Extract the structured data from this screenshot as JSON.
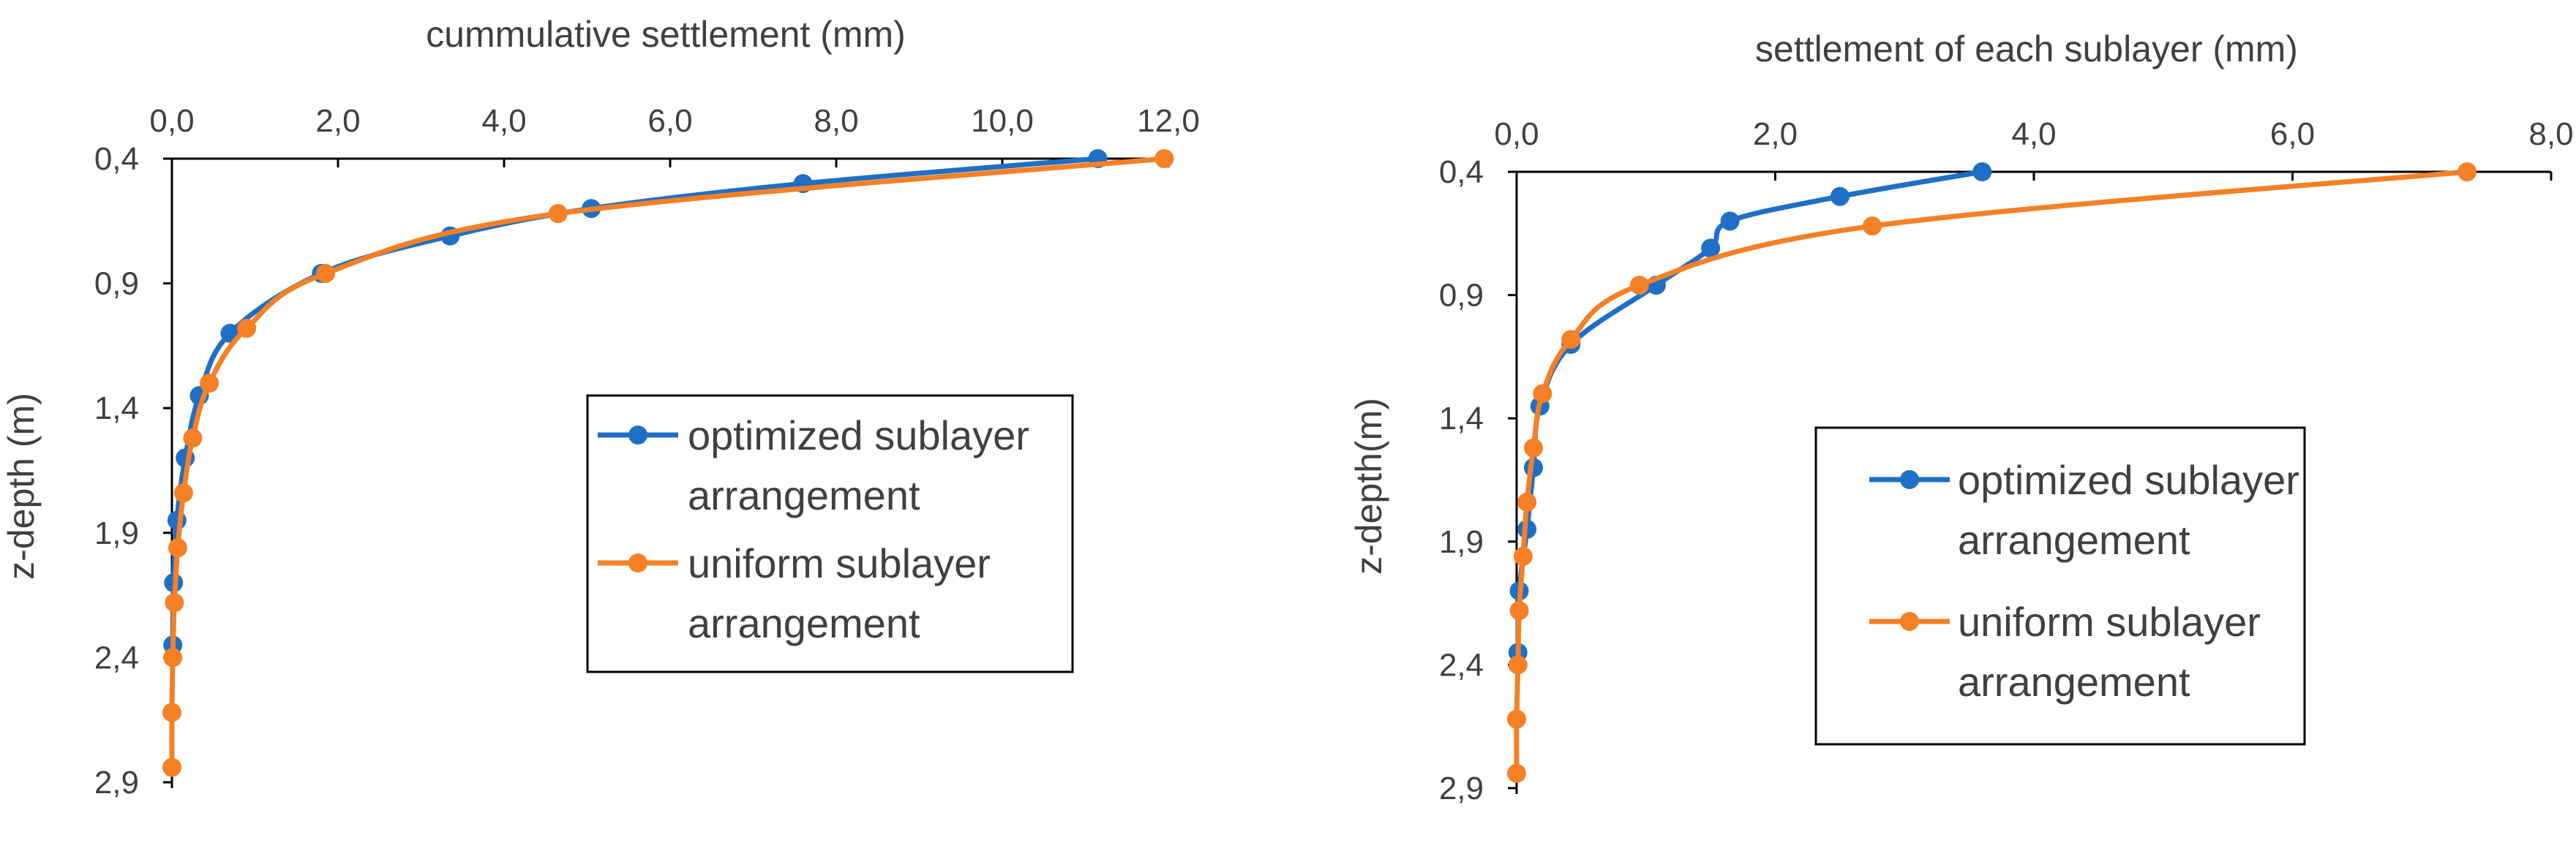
{
  "chart_data": [
    {
      "type": "line",
      "title": "",
      "xlabel": "cummulative settlement (mm)",
      "ylabel": "z-depth (m)",
      "x_ticks": [
        "0,0",
        "2,0",
        "4,0",
        "6,0",
        "8,0",
        "10,0",
        "12,0"
      ],
      "y_ticks": [
        "0,4",
        "0,9",
        "1,4",
        "1,9",
        "2,4",
        "2,9"
      ],
      "xlim": [
        0,
        12
      ],
      "ylim": [
        0.4,
        2.9
      ],
      "x_axis_position": "top",
      "y_axis_inverted": true,
      "legend_position": "center-right",
      "series": [
        {
          "name": "optimized sublayer arrangement",
          "label_lines": [
            "optimized sublayer",
            "arrangement"
          ],
          "color": "#1f6fc5",
          "points": [
            [
              11.15,
              0.4
            ],
            [
              7.6,
              0.5
            ],
            [
              5.05,
              0.6
            ],
            [
              3.35,
              0.71
            ],
            [
              1.8,
              0.86
            ],
            [
              0.7,
              1.1
            ],
            [
              0.33,
              1.35
            ],
            [
              0.16,
              1.6
            ],
            [
              0.06,
              1.85
            ],
            [
              0.02,
              2.1
            ],
            [
              0.01,
              2.35
            ]
          ]
        },
        {
          "name": "uniform sublayer arrangement",
          "label_lines": [
            "uniform sublayer",
            "arrangement"
          ],
          "color": "#f58025",
          "points": [
            [
              11.95,
              0.4
            ],
            [
              4.65,
              0.62
            ],
            [
              1.85,
              0.86
            ],
            [
              0.9,
              1.08
            ],
            [
              0.45,
              1.3
            ],
            [
              0.25,
              1.52
            ],
            [
              0.14,
              1.74
            ],
            [
              0.07,
              1.96
            ],
            [
              0.03,
              2.18
            ],
            [
              0.01,
              2.4
            ],
            [
              0.0,
              2.62
            ],
            [
              0.0,
              2.84
            ]
          ]
        }
      ]
    },
    {
      "type": "line",
      "title": "",
      "xlabel": "settlement of each sublayer (mm)",
      "ylabel": "z-depth(m)",
      "x_ticks": [
        "0,0",
        "2,0",
        "4,0",
        "6,0",
        "8,0"
      ],
      "y_ticks": [
        "0,4",
        "0,9",
        "1,4",
        "1,9",
        "2,4",
        "2,9"
      ],
      "xlim": [
        0,
        8
      ],
      "ylim": [
        0.4,
        2.9
      ],
      "x_axis_position": "top",
      "y_axis_inverted": true,
      "legend_position": "center-right",
      "series": [
        {
          "name": "optimized sublayer arrangement",
          "label_lines": [
            "optimized sublayer",
            "arrangement"
          ],
          "color": "#1f6fc5",
          "points": [
            [
              3.6,
              0.4
            ],
            [
              2.5,
              0.5
            ],
            [
              1.65,
              0.6
            ],
            [
              1.5,
              0.71
            ],
            [
              1.08,
              0.86
            ],
            [
              0.42,
              1.1
            ],
            [
              0.18,
              1.35
            ],
            [
              0.13,
              1.6
            ],
            [
              0.08,
              1.85
            ],
            [
              0.02,
              2.1
            ],
            [
              0.01,
              2.35
            ]
          ]
        },
        {
          "name": "uniform sublayer arrangement",
          "label_lines": [
            "uniform sublayer",
            "arrangement"
          ],
          "color": "#f58025",
          "points": [
            [
              7.35,
              0.4
            ],
            [
              2.75,
              0.62
            ],
            [
              0.95,
              0.86
            ],
            [
              0.42,
              1.08
            ],
            [
              0.2,
              1.3
            ],
            [
              0.13,
              1.52
            ],
            [
              0.08,
              1.74
            ],
            [
              0.05,
              1.96
            ],
            [
              0.02,
              2.18
            ],
            [
              0.01,
              2.4
            ],
            [
              0.0,
              2.62
            ],
            [
              0.0,
              2.84
            ]
          ]
        }
      ]
    }
  ]
}
